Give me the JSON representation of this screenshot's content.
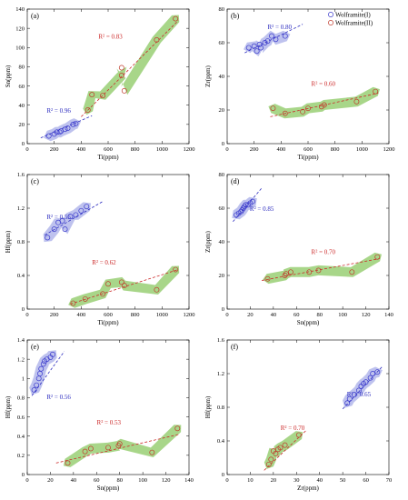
{
  "colors": {
    "g1_stroke": "#3a3acc",
    "g1_fill": "#b7bbec",
    "g1_line": "#2c2cbf",
    "g2_stroke": "#c0392b",
    "g2_fill": "#9fd17c",
    "g2_line": "#cc2a2a"
  },
  "legend": {
    "items": [
      {
        "label": "Wolframite(I)"
      },
      {
        "label": "Wolframite(II)"
      }
    ]
  },
  "chart_data": [
    {
      "type": "scatter",
      "panel": "(a)",
      "xlabel": "Ti(ppm)",
      "ylabel": "Sn(ppm)",
      "xlim": [
        0,
        1200
      ],
      "ylim": [
        0,
        140
      ],
      "xticks": [
        0,
        200,
        400,
        600,
        800,
        1000,
        1200
      ],
      "yticks": [
        0,
        20,
        40,
        60,
        80,
        100,
        120,
        140
      ],
      "series": [
        {
          "points": [
            [
              160,
              8
            ],
            [
              200,
              10
            ],
            [
              220,
              12
            ],
            [
              240,
              12
            ],
            [
              250,
              13
            ],
            [
              280,
              15
            ],
            [
              300,
              16
            ],
            [
              340,
              20
            ],
            [
              360,
              21
            ]
          ],
          "r2": "R² = 0.96",
          "fit": [
            [
              100,
              6
            ],
            [
              480,
              29
            ]
          ]
        },
        {
          "points": [
            [
              450,
              35
            ],
            [
              480,
              51
            ],
            [
              560,
              50
            ],
            [
              700,
              71
            ],
            [
              700,
              79
            ],
            [
              720,
              55
            ],
            [
              960,
              108
            ],
            [
              1100,
              130
            ]
          ],
          "r2": "R² = 0.83",
          "fit": [
            [
              400,
              28
            ],
            [
              1120,
              128
            ]
          ]
        }
      ]
    },
    {
      "type": "scatter",
      "panel": "(b)",
      "xlabel": "Ti(ppm)",
      "ylabel": "Zr(ppm)",
      "xlim": [
        0,
        1200
      ],
      "ylim": [
        0,
        80
      ],
      "xticks": [
        0,
        200,
        400,
        600,
        800,
        1000,
        1200
      ],
      "yticks": [
        0,
        20,
        40,
        60,
        80
      ],
      "series": [
        {
          "points": [
            [
              160,
              57
            ],
            [
              200,
              58
            ],
            [
              220,
              55
            ],
            [
              240,
              59
            ],
            [
              250,
              57
            ],
            [
              280,
              60
            ],
            [
              300,
              61
            ],
            [
              330,
              64
            ],
            [
              360,
              62
            ],
            [
              430,
              64
            ]
          ],
          "r2": "R² = 0.80",
          "fit": [
            [
              130,
              54
            ],
            [
              560,
              71
            ]
          ]
        },
        {
          "points": [
            [
              340,
              21
            ],
            [
              430,
              18
            ],
            [
              560,
              19
            ],
            [
              600,
              21
            ],
            [
              700,
              22
            ],
            [
              720,
              23
            ],
            [
              960,
              25
            ],
            [
              1100,
              31
            ]
          ],
          "r2": "R² = 0.60",
          "fit": [
            [
              320,
              16
            ],
            [
              1120,
              30
            ]
          ]
        }
      ]
    },
    {
      "type": "scatter",
      "panel": "(c)",
      "xlabel": "Ti(ppm)",
      "ylabel": "Hf(ppm)",
      "xlim": [
        0,
        1200
      ],
      "ylim": [
        0,
        1.6
      ],
      "xticks": [
        0,
        200,
        400,
        600,
        800,
        1000,
        1200
      ],
      "yticks": [
        0,
        0.4,
        0.8,
        1.2,
        1.6
      ],
      "series": [
        {
          "points": [
            [
              150,
              0.85
            ],
            [
              200,
              0.95
            ],
            [
              230,
              1.03
            ],
            [
              260,
              1.05
            ],
            [
              280,
              0.95
            ],
            [
              320,
              1.1
            ],
            [
              360,
              1.12
            ],
            [
              400,
              1.17
            ],
            [
              440,
              1.22
            ]
          ],
          "r2": "R² = 0.55",
          "fit": [
            [
              130,
              0.88
            ],
            [
              560,
              1.28
            ]
          ]
        },
        {
          "points": [
            [
              340,
              0.07
            ],
            [
              430,
              0.12
            ],
            [
              560,
              0.18
            ],
            [
              600,
              0.3
            ],
            [
              700,
              0.32
            ],
            [
              720,
              0.28
            ],
            [
              960,
              0.23
            ],
            [
              1100,
              0.47
            ]
          ],
          "r2": "R² = 0.62",
          "fit": [
            [
              320,
              0.06
            ],
            [
              1120,
              0.47
            ]
          ]
        }
      ]
    },
    {
      "type": "scatter",
      "panel": "(d)",
      "xlabel": "Sn(ppm)",
      "ylabel": "Zr(ppm)",
      "xlim": [
        0,
        140
      ],
      "ylim": [
        0,
        80
      ],
      "xticks": [
        0,
        20,
        40,
        60,
        80,
        100,
        120,
        140
      ],
      "yticks": [
        0,
        20,
        40,
        60,
        80
      ],
      "series": [
        {
          "points": [
            [
              8,
              56
            ],
            [
              10,
              57
            ],
            [
              12,
              58
            ],
            [
              13,
              59
            ],
            [
              14,
              60
            ],
            [
              15,
              61
            ],
            [
              16,
              62
            ],
            [
              18,
              62
            ],
            [
              20,
              63
            ],
            [
              22,
              64
            ]
          ],
          "r2": "R² = 0.85",
          "fit": [
            [
              5,
              52
            ],
            [
              30,
              72
            ]
          ]
        },
        {
          "points": [
            [
              35,
              18
            ],
            [
              50,
              20
            ],
            [
              51,
              21
            ],
            [
              55,
              22
            ],
            [
              71,
              22
            ],
            [
              79,
              23
            ],
            [
              108,
              22
            ],
            [
              130,
              31
            ]
          ],
          "r2": "R² = 0.70",
          "fit": [
            [
              30,
              17
            ],
            [
              132,
              30
            ]
          ]
        }
      ]
    },
    {
      "type": "scatter",
      "panel": "(e)",
      "xlabel": "Sn(ppm)",
      "ylabel": "Hf(ppm)",
      "xlim": [
        0,
        140
      ],
      "ylim": [
        0,
        1.4
      ],
      "xticks": [
        0,
        20,
        40,
        60,
        80,
        100,
        120,
        140
      ],
      "yticks": [
        0,
        0.2,
        0.4,
        0.6,
        0.8,
        1.0,
        1.2,
        1.4
      ],
      "series": [
        {
          "points": [
            [
              6,
              0.88
            ],
            [
              8,
              0.93
            ],
            [
              10,
              1.0
            ],
            [
              11,
              1.05
            ],
            [
              12,
              1.1
            ],
            [
              14,
              1.15
            ],
            [
              15,
              1.18
            ],
            [
              17,
              1.2
            ],
            [
              20,
              1.22
            ],
            [
              22,
              1.25
            ]
          ],
          "r2": "R² = 0.56",
          "fit": [
            [
              4,
              0.82
            ],
            [
              32,
              1.28
            ]
          ]
        },
        {
          "points": [
            [
              35,
              0.12
            ],
            [
              50,
              0.24
            ],
            [
              55,
              0.27
            ],
            [
              70,
              0.28
            ],
            [
              79,
              0.3
            ],
            [
              80,
              0.32
            ],
            [
              108,
              0.23
            ],
            [
              130,
              0.48
            ]
          ],
          "r2": "R² = 0.53",
          "fit": [
            [
              25,
              0.12
            ],
            [
              132,
              0.42
            ]
          ]
        }
      ]
    },
    {
      "type": "scatter",
      "panel": "(f)",
      "xlabel": "Zr(ppm)",
      "ylabel": "Hf(ppm)",
      "xlim": [
        0,
        70
      ],
      "ylim": [
        0,
        1.6
      ],
      "xticks": [
        0,
        10,
        20,
        30,
        40,
        50,
        60,
        70
      ],
      "yticks": [
        0,
        0.4,
        0.8,
        1.2,
        1.6
      ],
      "series": [
        {
          "points": [
            [
              52,
              0.85
            ],
            [
              53,
              0.9
            ],
            [
              55,
              0.95
            ],
            [
              57,
              1.0
            ],
            [
              58,
              1.05
            ],
            [
              59,
              1.08
            ],
            [
              60,
              1.1
            ],
            [
              62,
              1.15
            ],
            [
              63,
              1.2
            ],
            [
              65,
              1.22
            ]
          ],
          "r2": "R² = 0.65",
          "fit": [
            [
              50,
              0.78
            ],
            [
              67,
              1.28
            ]
          ]
        },
        {
          "points": [
            [
              18,
              0.12
            ],
            [
              19,
              0.18
            ],
            [
              20,
              0.28
            ],
            [
              21,
              0.25
            ],
            [
              22,
              0.3
            ],
            [
              23,
              0.32
            ],
            [
              25,
              0.35
            ],
            [
              31,
              0.47
            ]
          ],
          "r2": "R² = 0.70",
          "fit": [
            [
              16,
              0.05
            ],
            [
              34,
              0.52
            ]
          ]
        }
      ]
    }
  ]
}
